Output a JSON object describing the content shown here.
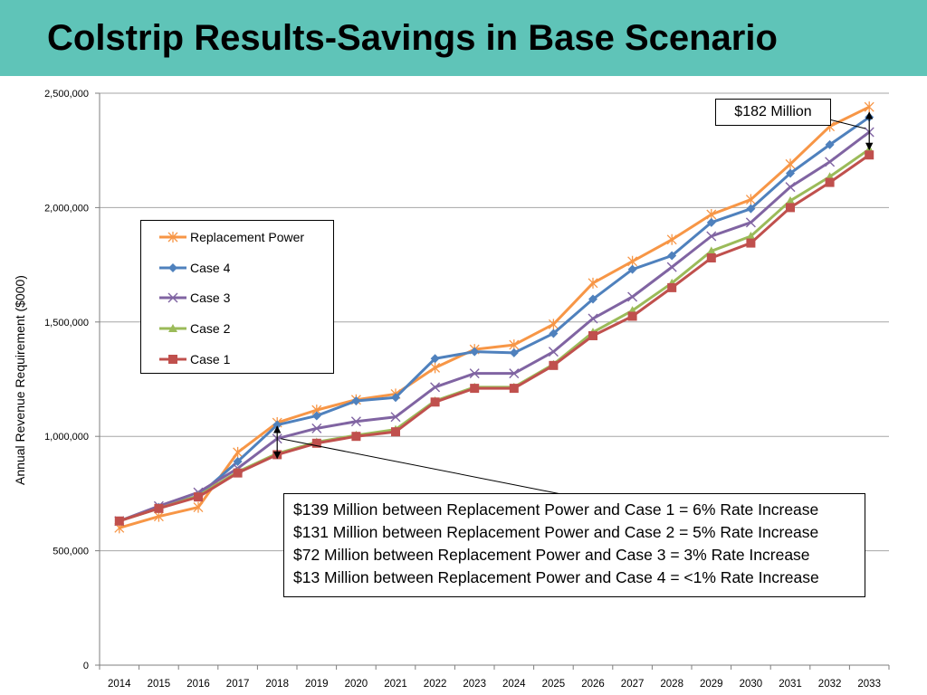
{
  "title": "Colstrip Results-Savings in Base Scenario",
  "chart_data": {
    "type": "line",
    "ylabel": "Annual Revenue Requirement ($000)",
    "xlabel": "",
    "x": [
      "2014",
      "2015",
      "2016",
      "2017",
      "2018",
      "2019",
      "2020",
      "2021",
      "2022",
      "2023",
      "2024",
      "2025",
      "2026",
      "2027",
      "2028",
      "2029",
      "2030",
      "2031",
      "2032",
      "2033"
    ],
    "ylim": [
      0,
      2500000
    ],
    "yticks": [
      0,
      500000,
      1000000,
      1500000,
      2000000,
      2500000
    ],
    "ytick_labels": [
      "0",
      "500,000",
      "1,000,000",
      "1,500,000",
      "2,000,000",
      "2,500,000"
    ],
    "grid": "horizontal",
    "legend_position": "upper-left",
    "series": [
      {
        "name": "Replacement Power",
        "color": "#f79646",
        "marker": "star",
        "values": [
          600000,
          650000,
          690000,
          930000,
          1060000,
          1115000,
          1160000,
          1185000,
          1300000,
          1380000,
          1400000,
          1490000,
          1670000,
          1765000,
          1860000,
          1970000,
          2035000,
          2190000,
          2355000,
          2440000
        ]
      },
      {
        "name": "Case 4",
        "color": "#4f81bd",
        "marker": "diamond",
        "values": [
          630000,
          690000,
          740000,
          890000,
          1050000,
          1090000,
          1155000,
          1170000,
          1340000,
          1370000,
          1365000,
          1450000,
          1600000,
          1730000,
          1790000,
          1935000,
          1995000,
          2150000,
          2275000,
          2395000
        ]
      },
      {
        "name": "Case 3",
        "color": "#8064a2",
        "marker": "x",
        "values": [
          630000,
          695000,
          755000,
          860000,
          990000,
          1035000,
          1065000,
          1085000,
          1215000,
          1275000,
          1275000,
          1370000,
          1515000,
          1610000,
          1740000,
          1875000,
          1935000,
          2090000,
          2200000,
          2330000
        ]
      },
      {
        "name": "Case 2",
        "color": "#9bbb59",
        "marker": "triangle",
        "values": [
          630000,
          685000,
          740000,
          845000,
          925000,
          975000,
          1005000,
          1030000,
          1155000,
          1215000,
          1215000,
          1315000,
          1455000,
          1550000,
          1670000,
          1810000,
          1875000,
          2030000,
          2135000,
          2255000
        ]
      },
      {
        "name": "Case 1",
        "color": "#c0504d",
        "marker": "square",
        "values": [
          630000,
          685000,
          735000,
          840000,
          920000,
          970000,
          1000000,
          1020000,
          1150000,
          1210000,
          1210000,
          1310000,
          1440000,
          1525000,
          1650000,
          1780000,
          1845000,
          2000000,
          2110000,
          2230000
        ]
      }
    ],
    "annotations": {
      "top": "$182 Million",
      "bottom": [
        "$139 Million between Replacement Power and Case 1 = 6% Rate Increase",
        "$131 Million between Replacement Power and Case 2 = 5% Rate Increase",
        "$72 Million between Replacement Power and Case 3 = 3% Rate Increase",
        "$13 Million between Replacement Power and Case 4 = <1% Rate Increase"
      ]
    }
  }
}
